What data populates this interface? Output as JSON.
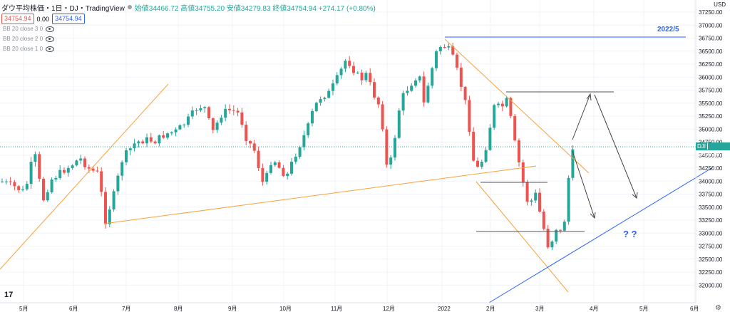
{
  "header": {
    "symbol_title": "ダウ平均株価・1日・DJ・TradingView",
    "ohlc_text": "始値34466.72 高値34755.20 安値34279.83 終値34754.94 +274.17 (+0.80%)",
    "sell_price": "34754.94",
    "spread": "0.00",
    "buy_price": "34754.94"
  },
  "indicators": [
    {
      "label": "BB 20 close 3 0"
    },
    {
      "label": "BB 20 close 2 0"
    },
    {
      "label": "BB 20 close 1 0"
    }
  ],
  "price_axis": {
    "currency": "USD",
    "ticks": [
      "37250.00",
      "37000.00",
      "36750.00",
      "36500.00",
      "36250.00",
      "36000.00",
      "35750.00",
      "35500.00",
      "35250.00",
      "35000.00",
      "34750.00",
      "34500.00",
      "34250.00",
      "34000.00",
      "33750.00",
      "33500.00",
      "33250.00",
      "33000.00",
      "32750.00",
      "32500.00",
      "32250.00",
      "32000.00"
    ]
  },
  "time_axis": {
    "labels": [
      "5月",
      "6月",
      "7月",
      "8月",
      "9月",
      "10月",
      "11月",
      "12月",
      "2022",
      "2月",
      "3月",
      "4月",
      "5月",
      "6月"
    ]
  },
  "last_price": {
    "symbol": "DJI",
    "value": "34754.94"
  },
  "annotations": {
    "target_label": "2022/5",
    "question": "? ?"
  },
  "colors": {
    "up": "#26a69a",
    "down": "#ef5350",
    "trend": "#f7a23b",
    "support": "#2962ff"
  },
  "chart_data": {
    "type": "candlestick",
    "ylim": [
      31850,
      37400
    ],
    "grid": true,
    "last_close": 34754.94
  }
}
